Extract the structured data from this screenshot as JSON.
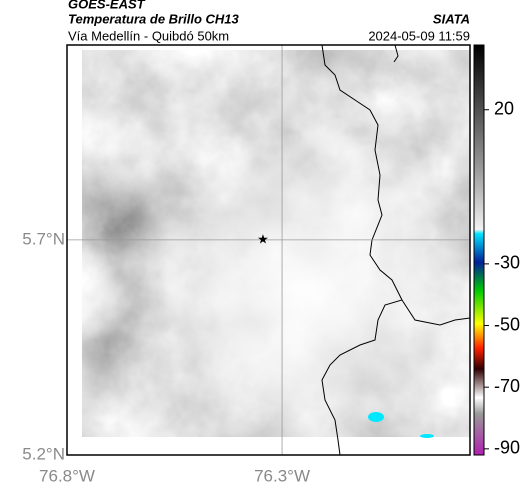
{
  "header": {
    "source": "GOES-EAST",
    "product": "Temperatura de Brillo CH13",
    "region": "Vía Medellín - Quibdó 50km",
    "agency": "SIATA",
    "timestamp": "2024-05-09 11:59"
  },
  "chart_data": {
    "type": "map",
    "xlim": [
      -76.8,
      -75.863
    ],
    "ylim": [
      5.2,
      6.153
    ],
    "xticks": [
      {
        "value": -76.8,
        "label": "76.8°W"
      },
      {
        "value": -76.3,
        "label": "76.3°W"
      }
    ],
    "yticks": [
      {
        "value": 5.2,
        "label": "5.2°N"
      },
      {
        "value": 5.7,
        "label": "5.7°N"
      }
    ],
    "grid": true,
    "colorbar": {
      "clim": [
        -92,
        41
      ],
      "ticks": [
        20,
        -30,
        -50,
        -70,
        -90
      ]
    }
  }
}
